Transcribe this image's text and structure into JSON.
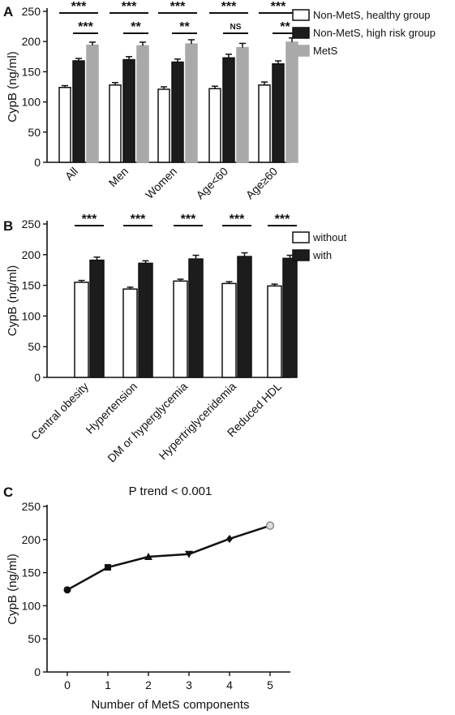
{
  "chart_data": [
    {
      "panel": "A",
      "type": "bar",
      "ylabel": "CypB (ng/ml)",
      "ylim": [
        0,
        250
      ],
      "yticks": [
        0,
        50,
        100,
        150,
        200,
        250
      ],
      "categories": [
        "All",
        "Men",
        "Women",
        "Age<60",
        "Age≥60"
      ],
      "series": [
        {
          "name": "Non-MetS, healthy group",
          "color": "#ffffff",
          "values": [
            124,
            128,
            121,
            122,
            128
          ],
          "errors": [
            3,
            4,
            4,
            4,
            5
          ]
        },
        {
          "name": "Non-MetS, high risk group",
          "color": "#1c1c1c",
          "values": [
            168,
            170,
            166,
            173,
            163
          ],
          "errors": [
            4,
            5,
            5,
            6,
            5
          ]
        },
        {
          "name": "MetS",
          "color": "#a9a9a9",
          "values": [
            194,
            193,
            196,
            190,
            199
          ],
          "errors": [
            5,
            6,
            7,
            7,
            7
          ]
        }
      ],
      "significance": [
        {
          "category": 0,
          "from": 0,
          "to": 2,
          "label": "***"
        },
        {
          "category": 0,
          "from": 1,
          "to": 2,
          "label": "***"
        },
        {
          "category": 1,
          "from": 0,
          "to": 2,
          "label": "***"
        },
        {
          "category": 1,
          "from": 1,
          "to": 2,
          "label": "**"
        },
        {
          "category": 2,
          "from": 0,
          "to": 2,
          "label": "***"
        },
        {
          "category": 2,
          "from": 1,
          "to": 2,
          "label": "**"
        },
        {
          "category": 3,
          "from": 0,
          "to": 2,
          "label": "***"
        },
        {
          "category": 3,
          "from": 1,
          "to": 2,
          "label": "NS"
        },
        {
          "category": 4,
          "from": 0,
          "to": 2,
          "label": "***"
        },
        {
          "category": 4,
          "from": 1,
          "to": 2,
          "label": "**"
        }
      ],
      "legend": "right"
    },
    {
      "panel": "B",
      "type": "bar",
      "ylabel": "CypB (ng/ml)",
      "ylim": [
        0,
        250
      ],
      "yticks": [
        0,
        50,
        100,
        150,
        200,
        250
      ],
      "categories": [
        "Central obesity",
        "Hypertension",
        "DM or hyperglycemia",
        "Hypertriglyceridemia",
        "Reduced HDL"
      ],
      "series": [
        {
          "name": "without",
          "color": "#ffffff",
          "values": [
            155,
            144,
            157,
            153,
            149
          ],
          "errors": [
            3,
            3,
            3,
            3,
            3
          ]
        },
        {
          "name": "with",
          "color": "#1c1c1c",
          "values": [
            191,
            186,
            193,
            197,
            194
          ],
          "errors": [
            5,
            4,
            6,
            6,
            5
          ]
        }
      ],
      "significance": [
        {
          "category": 0,
          "from": 0,
          "to": 1,
          "label": "***"
        },
        {
          "category": 1,
          "from": 0,
          "to": 1,
          "label": "***"
        },
        {
          "category": 2,
          "from": 0,
          "to": 1,
          "label": "***"
        },
        {
          "category": 3,
          "from": 0,
          "to": 1,
          "label": "***"
        },
        {
          "category": 4,
          "from": 0,
          "to": 1,
          "label": "***"
        }
      ],
      "legend": "right"
    },
    {
      "panel": "C",
      "type": "line",
      "title": "P trend < 0.001",
      "xlabel": "Number of MetS components",
      "ylabel": "CypB (ng/ml)",
      "xlim": [
        -0.5,
        5.5
      ],
      "ylim": [
        0,
        250
      ],
      "yticks": [
        0,
        50,
        100,
        150,
        200,
        250
      ],
      "x": [
        0,
        1,
        2,
        3,
        4,
        5
      ],
      "y": [
        124,
        158,
        174,
        178,
        201,
        221
      ],
      "markers": [
        "circle",
        "square",
        "triangle-up",
        "triangle-down",
        "diamond",
        "circle-open"
      ]
    }
  ]
}
